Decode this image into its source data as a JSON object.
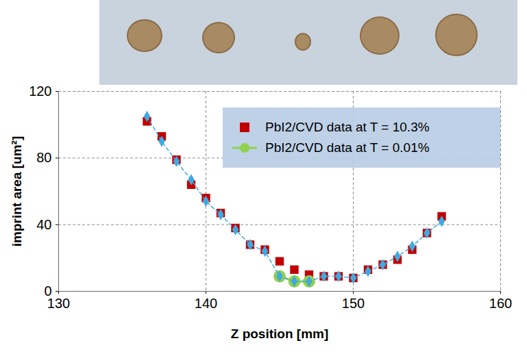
{
  "chart_data": {
    "type": "scatter",
    "xlabel": "Z position [mm]",
    "ylabel": "imprint area [um²]",
    "xlim": [
      130,
      160
    ],
    "ylim": [
      0,
      120
    ],
    "xticks": [
      130,
      140,
      150,
      160
    ],
    "yticks": [
      0,
      40,
      80,
      120
    ],
    "grid": true,
    "legend": "top-right",
    "series": [
      {
        "name": "PbI2/CVD data at T = 10.3%",
        "color": "#c00000",
        "marker": "square",
        "line_style": "none",
        "x": [
          136,
          137,
          138,
          139,
          140,
          141,
          142,
          143,
          144,
          145,
          146,
          147,
          148,
          149,
          150,
          151,
          152,
          153,
          154,
          155,
          156
        ],
        "values": [
          102,
          93,
          79,
          64,
          56,
          47,
          38,
          28,
          25,
          18,
          13,
          10,
          9,
          9,
          8,
          13,
          16,
          19,
          25,
          35,
          45
        ]
      },
      {
        "name": "PbI2/CVD data at T = 0.01%",
        "color": "#92d050",
        "marker": "circle",
        "line_style": "solid",
        "x": [
          145,
          146,
          147
        ],
        "values": [
          9,
          6,
          6
        ]
      },
      {
        "color": "#3fa9e0",
        "marker": "diamond",
        "line_style": "dashed",
        "x": [
          136,
          137,
          138,
          139,
          140,
          141,
          142,
          143,
          144,
          145,
          146,
          147,
          148,
          149,
          150,
          151,
          152,
          153,
          154,
          155,
          156
        ],
        "values": [
          105,
          90,
          78,
          67,
          54,
          46,
          37,
          28,
          24,
          9,
          6,
          6,
          9,
          9,
          8,
          12,
          16,
          21,
          27,
          35,
          42
        ]
      }
    ]
  }
}
